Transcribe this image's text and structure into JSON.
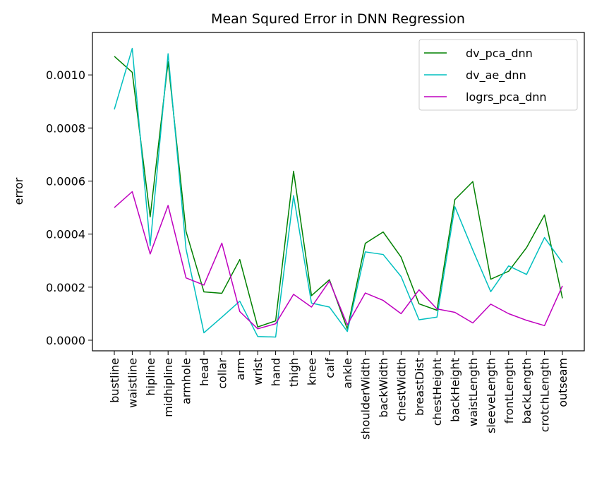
{
  "chart_data": {
    "type": "line",
    "title": "Mean Squred Error in DNN Regression",
    "xlabel": "",
    "ylabel": "error",
    "ylim": [
      -4e-05,
      0.00116
    ],
    "yticks": [
      0.0,
      0.0002,
      0.0004,
      0.0006,
      0.0008,
      0.001
    ],
    "ytick_labels": [
      "0.0000",
      "0.0002",
      "0.0004",
      "0.0006",
      "0.0008",
      "0.0010"
    ],
    "grid": false,
    "legend_position": "top-right",
    "categories": [
      "bustline",
      "waistline",
      "hipline",
      "midhipline",
      "armhole",
      "head",
      "collar",
      "arm",
      "wrist",
      "hand",
      "thigh",
      "knee",
      "calf",
      "ankle",
      "shoulderWidth",
      "backWidth",
      "chestWidth",
      "breastDist",
      "chestHeight",
      "backHeight",
      "waistLength",
      "sleeveLength",
      "frontLength",
      "backLength",
      "crotchLength",
      "outseam"
    ],
    "series": [
      {
        "name": "dv_pca_dnn",
        "color": "#008000",
        "values": [
          0.00107,
          0.00101,
          0.000465,
          0.00105,
          0.00041,
          0.000182,
          0.000177,
          0.000304,
          5e-05,
          7.3e-05,
          0.000637,
          0.000168,
          0.000228,
          4.2e-05,
          0.000365,
          0.000408,
          0.000313,
          0.000137,
          0.000113,
          0.00053,
          0.000598,
          0.00023,
          0.00026,
          0.000349,
          0.000472,
          0.000158
        ]
      },
      {
        "name": "dv_ae_dnn",
        "color": "#00bfbf",
        "values": [
          0.00087,
          0.0011,
          0.000356,
          0.00108,
          0.000344,
          2.8e-05,
          8.7e-05,
          0.000147,
          1.4e-05,
          1.2e-05,
          0.000545,
          0.00014,
          0.000125,
          3.3e-05,
          0.000333,
          0.000323,
          0.00024,
          7.7e-05,
          8.7e-05,
          0.000503,
          0.00034,
          0.000183,
          0.00028,
          0.000248,
          0.000387,
          0.000292
        ]
      },
      {
        "name": "logrs_pca_dnn",
        "color": "#bf00bf",
        "values": [
          0.0005,
          0.00056,
          0.000325,
          0.000508,
          0.000235,
          0.000208,
          0.000366,
          0.000108,
          4.3e-05,
          6.2e-05,
          0.000173,
          0.000125,
          0.000223,
          5.8e-05,
          0.000178,
          0.00015,
          0.0001,
          0.00019,
          0.000118,
          0.000105,
          6.5e-05,
          0.000136,
          0.0001,
          7.5e-05,
          5.5e-05,
          0.000205
        ]
      }
    ]
  }
}
